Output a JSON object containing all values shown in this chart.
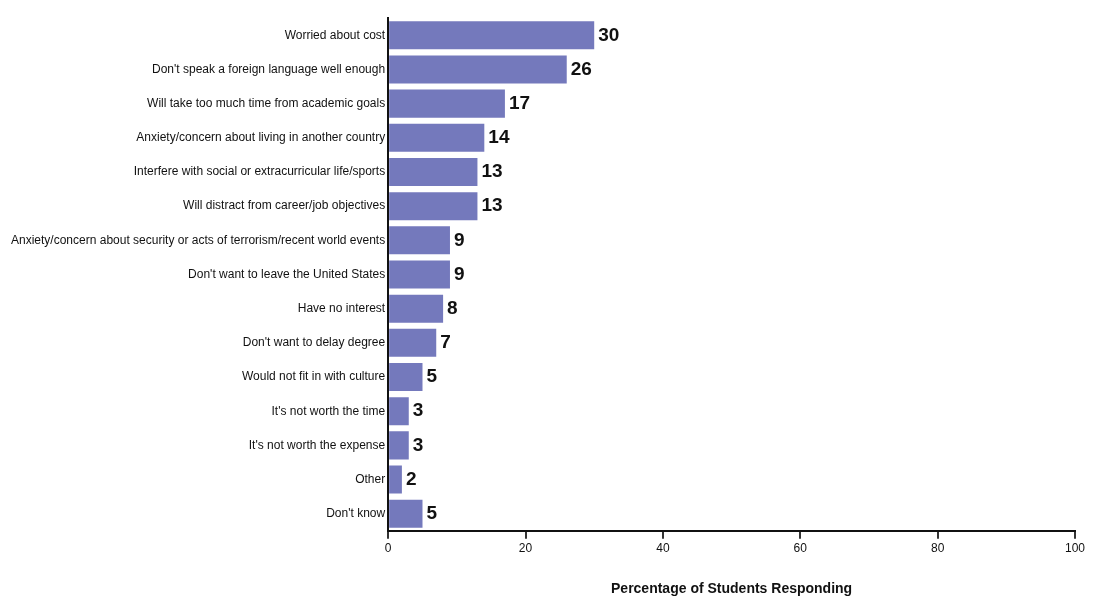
{
  "chart_data": {
    "type": "bar",
    "orientation": "horizontal",
    "xlabel": "Percentage of Students Responding",
    "categories": [
      "Worried about cost",
      "Don't speak a foreign language well enough",
      "Will take too much time from academic goals",
      "Anxiety/concern about living in another country",
      "Interfere with social or extracurricular life/sports",
      "Will distract from career/job objectives",
      "Anxiety/concern about security or acts of terrorism/recent world events",
      "Don't want to leave the United States",
      "Have no interest",
      "Don't want to delay degree",
      "Would not fit in with culture",
      "It's not worth the time",
      "It's not worth the expense",
      "Other",
      "Don't know"
    ],
    "values": [
      30,
      26,
      17,
      14,
      13,
      13,
      9,
      9,
      8,
      7,
      5,
      3,
      3,
      2,
      5
    ],
    "color": "#7479bc",
    "xlim": [
      0,
      100
    ],
    "xticks": [
      0,
      20,
      40,
      60,
      80,
      100
    ],
    "grid": false,
    "legend": false,
    "data_labels": true
  }
}
